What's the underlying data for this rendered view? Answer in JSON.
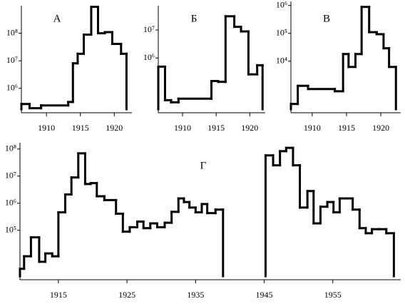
{
  "chart_data": [
    {
      "type": "step",
      "title": "А",
      "log_y": true,
      "color": "#000",
      "xlim": [
        1906.3,
        1922.6
      ],
      "ylim": [
        130000,
        1000000000
      ],
      "xticks": [
        1910,
        1915,
        1920
      ],
      "yticks": [
        {
          "value": 100000000,
          "label": "10⁸"
        },
        {
          "value": 10000000,
          "label": "10⁷"
        },
        {
          "value": 1000000,
          "label": "10⁶"
        }
      ],
      "segments": [
        {
          "x": [
            1906.3,
            1907.5,
            1909.2,
            1913.2,
            1913.9,
            1914.6,
            1915.5,
            1916.6,
            1917.6,
            1918.6,
            1919.7,
            1921
          ],
          "x_end": 1921.8,
          "values": [
            270000,
            190000,
            240000,
            320000,
            8100000,
            18000000,
            89000000,
            910000000,
            100000000,
            110000000,
            41000000,
            18000000
          ]
        }
      ]
    },
    {
      "type": "step",
      "title": "Б",
      "log_y": true,
      "color": "#000",
      "xlim": [
        1906.4,
        1922.3
      ],
      "ylim": [
        11000,
        74000000
      ],
      "xticks": [
        1910,
        1915,
        1920
      ],
      "yticks": [
        {
          "value": 10000000,
          "label": "10⁷"
        },
        {
          "value": 1000000,
          "label": "10⁶"
        }
      ],
      "segments": [
        {
          "x": [
            1906.4,
            1907.4,
            1908.3,
            1909.4,
            1914.3,
            1915.3,
            1916.4,
            1917.7,
            1918.7,
            1919.8,
            1921.1
          ],
          "x_end": 1921.9,
          "values": [
            490000,
            31000,
            26000,
            35000,
            150000,
            140000,
            31000000,
            13000000,
            8900000,
            260000,
            550000
          ]
        }
      ]
    },
    {
      "type": "step",
      "title": "В",
      "log_y": true,
      "color": "#000",
      "xlim": [
        1906.9,
        1922.9
      ],
      "ylim": [
        140,
        1400000
      ],
      "xticks": [
        1910,
        1915,
        1920
      ],
      "yticks": [
        {
          "value": 1000000,
          "label": "10⁶"
        },
        {
          "value": 100000,
          "label": "10⁵"
        },
        {
          "value": 10000,
          "label": "10⁴"
        }
      ],
      "segments": [
        {
          "x": [
            1906.9,
            1907.9,
            1909.4,
            1913.3,
            1914.5,
            1915.3,
            1916.3,
            1917.2,
            1918.3,
            1919.4,
            1920.4,
            1921.2
          ],
          "x_end": 1922.2,
          "values": [
            290,
            1300,
            1000,
            830,
            18000,
            6200,
            18000,
            890000,
            110000,
            93000,
            29000,
            6200
          ]
        }
      ]
    },
    {
      "type": "step",
      "title": "Г",
      "log_y": true,
      "color": "#000",
      "xlim": [
        1909.4,
        1964.9
      ],
      "ylim": [
        1500,
        170000000
      ],
      "xticks": [
        1915,
        1925,
        1935,
        1945,
        1955
      ],
      "yticks": [
        {
          "value": 100000000,
          "label": "10⁸"
        },
        {
          "value": 10000000,
          "label": "10⁷"
        },
        {
          "value": 1000000,
          "label": "10⁶"
        },
        {
          "value": 100000,
          "label": "10⁵"
        }
      ],
      "segments": [
        {
          "x": [
            1909.4,
            1910,
            1911,
            1912.2,
            1913.1,
            1914.1,
            1915,
            1916,
            1916.9,
            1917.9,
            1918.9,
            1919.7,
            1920.6,
            1921.7,
            1923.4,
            1924.4,
            1925.4,
            1926.5,
            1927.4,
            1928.4,
            1929.4,
            1930.5,
            1931.5,
            1932.5,
            1933.3,
            1934.1,
            1935,
            1935.9,
            1936.7,
            1937.9
          ],
          "x_end": 1939,
          "values": [
            3800,
            11000,
            55000,
            6900,
            14000,
            11000,
            460000,
            2100000,
            8900000,
            69000000,
            5100000,
            5500000,
            1800000,
            1300000,
            410000,
            89000,
            130000,
            210000,
            120000,
            180000,
            130000,
            190000,
            480000,
            1500000,
            1100000,
            690000,
            460000,
            930000,
            430000,
            580000
          ]
        },
        {
          "x": [
            1945.2,
            1946.3,
            1947.3,
            1948.2,
            1949.2,
            1950.2,
            1951.3,
            1952.2,
            1953.2,
            1954.2,
            1955.1,
            1956,
            1957,
            1957.9,
            1958.9,
            1959.8,
            1960.7,
            1961.7,
            1962.8
          ],
          "x_end": 1963.9,
          "values": [
            58000000,
            25000000,
            83000000,
            110000000,
            25000000,
            690000,
            2800000,
            180000,
            740000,
            1100000,
            460000,
            1500000,
            1500000,
            580000,
            120000,
            78000,
            110000,
            110000,
            78000
          ]
        }
      ]
    }
  ]
}
